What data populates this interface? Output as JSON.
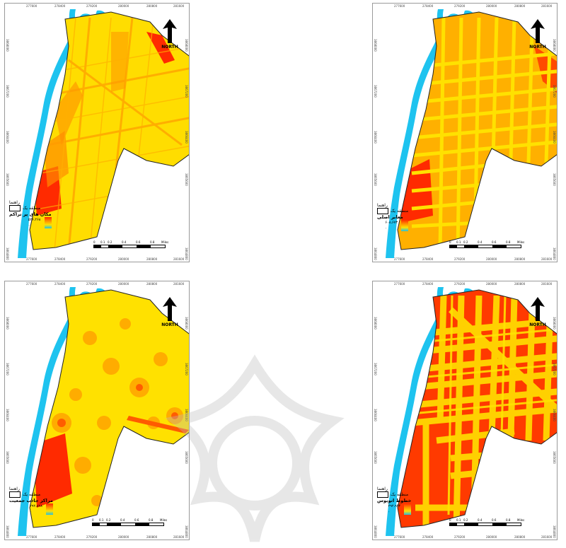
{
  "maps": [
    {
      "id": "map-1",
      "legend_place_label": "منطقه یک",
      "legend_header": "راهنما",
      "layer_name": "مکان های پر تراکم",
      "value_high": "۵۲۶،۲۶۸",
      "value_low": "۰",
      "north_label": "NORTH",
      "top_ticks": [
        "277600",
        "278400",
        "279200",
        "280000",
        "280800",
        "281600"
      ],
      "bottom_ticks": [
        "277600",
        "278400",
        "279200",
        "280000",
        "280800",
        "281600"
      ],
      "side_ticks": [
        "3868000",
        "3867200",
        "3866400",
        "3865600",
        "3864800"
      ],
      "scale_labels": [
        "0",
        "0.1",
        "0.2",
        "0.4",
        "0.6",
        "0.8",
        "Miles"
      ]
    },
    {
      "id": "map-2",
      "legend_place_label": "منطقه یک",
      "legend_header": "راهنما",
      "layer_name": "معابر اصلی",
      "value_high": "۶۰۸،۶۷۳",
      "value_low": "۰",
      "north_label": "NORTH",
      "top_ticks": [
        "277600",
        "278400",
        "279200",
        "280000",
        "280800",
        "281600"
      ],
      "bottom_ticks": [
        "277600",
        "278400",
        "279200",
        "280000",
        "280800",
        "281600"
      ],
      "side_ticks": [
        "3868000",
        "3867200",
        "3866400",
        "3865600",
        "3864800"
      ],
      "scale_labels": [
        "0",
        "0.1",
        "0.2",
        "0.4",
        "0.6",
        "0.8",
        "Miles"
      ]
    },
    {
      "id": "map-3",
      "legend_place_label": "منطقه یک",
      "legend_header": "راهنما",
      "layer_name": "مراکز جاذب جمعیت",
      "value_high": "۲۹۲،۸۲۸",
      "value_low": "۰",
      "north_label": "NORTH",
      "top_ticks": [
        "277600",
        "278400",
        "279200",
        "280000",
        "280800",
        "281600"
      ],
      "bottom_ticks": [
        "277600",
        "278400",
        "279200",
        "280000",
        "280800",
        "281600"
      ],
      "side_ticks": [
        "3868000",
        "3867200",
        "3866400",
        "3865600",
        "3864800"
      ],
      "scale_labels": [
        "0",
        "0.1",
        "0.2",
        "0.4",
        "0.6",
        "0.8",
        "Miles"
      ]
    },
    {
      "id": "map-4",
      "legend_place_label": "منطقه یک",
      "legend_header": "راهنما",
      "layer_name": "خطوط اتوبوس",
      "value_high": "۲۹۲،۹۴۴",
      "value_low": "۰",
      "north_label": "NORTH",
      "top_ticks": [
        "277600",
        "278400",
        "279200",
        "280000",
        "280800",
        "281600"
      ],
      "bottom_ticks": [
        "277600",
        "278400",
        "279200",
        "280000",
        "280800",
        "281600"
      ],
      "side_ticks": [
        "3868000",
        "3867200",
        "3866400",
        "3865600",
        "3864800"
      ],
      "scale_labels": [
        "0",
        "0.1",
        "0.2",
        "0.4",
        "0.6",
        "0.8",
        "Miles"
      ]
    }
  ],
  "colors": {
    "river": "#1ec3ef",
    "low": "#ffe100",
    "mid": "#ff9a00",
    "high": "#ff2a00",
    "outline": "#222222"
  }
}
